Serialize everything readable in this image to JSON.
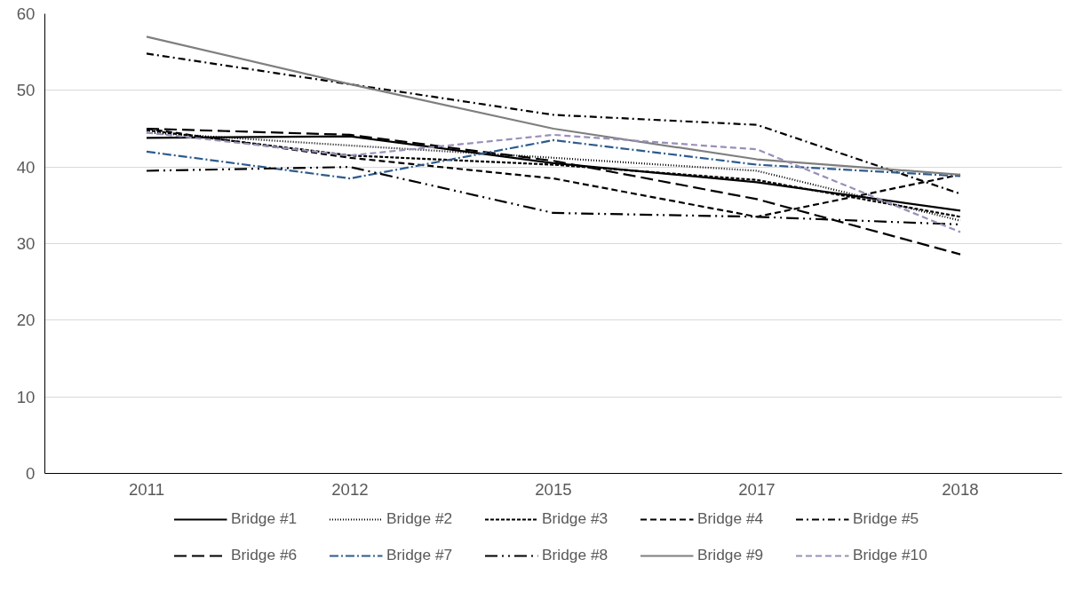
{
  "chart_data": {
    "type": "line",
    "categories": [
      "2011",
      "2012",
      "2015",
      "2017",
      "2018"
    ],
    "ylim": [
      0,
      60
    ],
    "yticks": [
      0,
      10,
      20,
      30,
      40,
      50,
      60
    ],
    "grid": "y",
    "legend": "bottom",
    "series": [
      {
        "name": "Bridge #1",
        "color": "#000000",
        "line_style": "solid",
        "values": [
          43.8,
          44,
          40.5,
          38,
          34.3
        ]
      },
      {
        "name": "Bridge #2",
        "color": "#000000",
        "line_style": "dotted",
        "values": [
          44.5,
          42.8,
          41.2,
          39.5,
          33
        ]
      },
      {
        "name": "Bridge #3",
        "color": "#000000",
        "line_style": "shortdash",
        "values": [
          44.8,
          41.5,
          40.3,
          38.3,
          33.5
        ]
      },
      {
        "name": "Bridge #4",
        "color": "#000000",
        "line_style": "dashed",
        "values": [
          45,
          41.2,
          38.5,
          33.5,
          39
        ]
      },
      {
        "name": "Bridge #5",
        "color": "#000000",
        "line_style": "dashdot",
        "values": [
          54.8,
          50.8,
          46.8,
          45.5,
          36.5
        ]
      },
      {
        "name": "Bridge #6",
        "color": "#000000",
        "line_style": "longdash",
        "values": [
          45,
          44.2,
          40.8,
          35.8,
          28.6
        ]
      },
      {
        "name": "Bridge #7",
        "color": "#2e5b8c",
        "line_style": "longdashdot",
        "values": [
          42,
          38.5,
          43.5,
          40.3,
          38.8
        ]
      },
      {
        "name": "Bridge #8",
        "color": "#000000",
        "line_style": "longdashdotdot",
        "values": [
          39.5,
          40,
          34,
          33.5,
          32.5
        ]
      },
      {
        "name": "Bridge #9",
        "color": "#7f7f7f",
        "line_style": "solid",
        "values": [
          57,
          50.8,
          45,
          41,
          39
        ]
      },
      {
        "name": "Bridge #10",
        "color": "#9a8fb8",
        "line_style": "dashed",
        "values": [
          44.5,
          41.5,
          44.2,
          42.3,
          31.5
        ]
      }
    ]
  }
}
